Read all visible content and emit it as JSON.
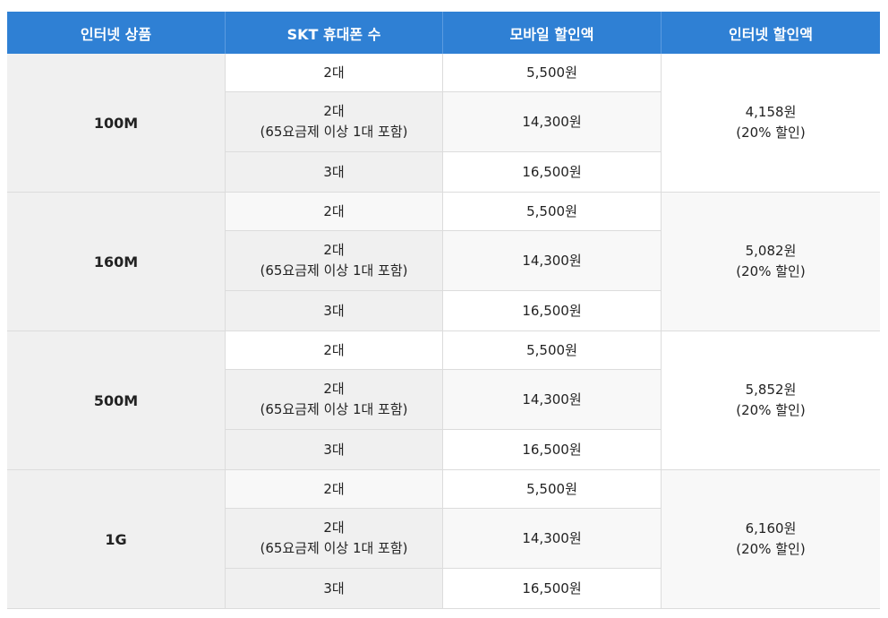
{
  "header": [
    "인터넷 상품",
    "SKT 휴대폰 수",
    "모바일 할인액",
    "인터넷 할인액"
  ],
  "groups": [
    {
      "product": "100M",
      "internet_discount": "4,158원",
      "internet_rate": "(20% 할인)",
      "rows": [
        {
          "count": "2대",
          "note": "",
          "mobile": "5,500원"
        },
        {
          "count": "2대",
          "note": "(65요금제 이상 1대 포함)",
          "mobile": "14,300원"
        },
        {
          "count": "3대",
          "note": "",
          "mobile": "16,500원"
        }
      ]
    },
    {
      "product": "160M",
      "internet_discount": "5,082원",
      "internet_rate": "(20% 할인)",
      "rows": [
        {
          "count": "2대",
          "note": "",
          "mobile": "5,500원"
        },
        {
          "count": "2대",
          "note": "(65요금제 이상 1대 포함)",
          "mobile": "14,300원"
        },
        {
          "count": "3대",
          "note": "",
          "mobile": "16,500원"
        }
      ]
    },
    {
      "product": "500M",
      "internet_discount": "5,852원",
      "internet_rate": "(20% 할인)",
      "rows": [
        {
          "count": "2대",
          "note": "",
          "mobile": "5,500원"
        },
        {
          "count": "2대",
          "note": "(65요금제 이상 1대 포함)",
          "mobile": "14,300원"
        },
        {
          "count": "3대",
          "note": "",
          "mobile": "16,500원"
        }
      ]
    },
    {
      "product": "1G",
      "internet_discount": "6,160원",
      "internet_rate": "(20% 할인)",
      "rows": [
        {
          "count": "2대",
          "note": "",
          "mobile": "5,500원"
        },
        {
          "count": "2대",
          "note": "(65요금제 이상 1대 포함)",
          "mobile": "14,300원"
        },
        {
          "count": "3대",
          "note": "",
          "mobile": "16,500원"
        }
      ]
    }
  ]
}
